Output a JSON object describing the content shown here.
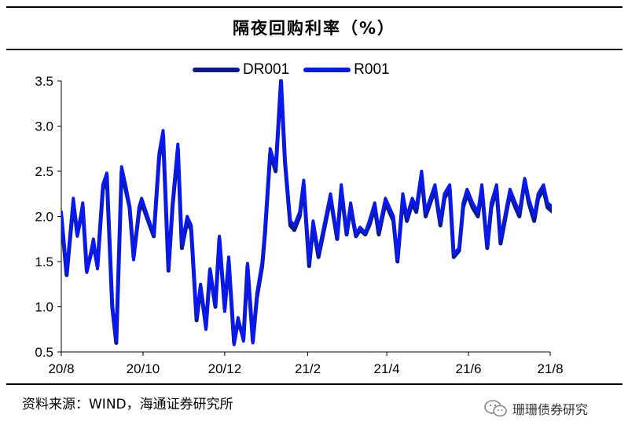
{
  "title": "隔夜回购利率（%）",
  "source": "资料来源：WIND，海通证券研究所",
  "watermark": "珊珊债券研究",
  "colors": {
    "DR001": "#0b1a8a",
    "R001": "#0a18f0"
  },
  "chart_data": {
    "type": "line",
    "title": "隔夜回购利率（%）",
    "xlabel": "",
    "ylabel": "",
    "ylim": [
      0.5,
      3.5
    ],
    "yticks": [
      "0.5",
      "1.0",
      "1.5",
      "2.0",
      "2.5",
      "3.0",
      "3.5"
    ],
    "xticks": [
      "20/8",
      "20/10",
      "20/12",
      "21/2",
      "21/4",
      "21/6",
      "21/8"
    ],
    "legend_position": "top-center",
    "grid": false,
    "x": [
      "2020-08-01",
      "2020-08-05",
      "2020-08-10",
      "2020-08-13",
      "2020-08-17",
      "2020-08-20",
      "2020-08-25",
      "2020-08-28",
      "2020-09-01",
      "2020-09-04",
      "2020-09-08",
      "2020-09-11",
      "2020-09-15",
      "2020-09-18",
      "2020-09-21",
      "2020-09-24",
      "2020-09-28",
      "2020-09-30",
      "2020-10-09",
      "2020-10-13",
      "2020-10-16",
      "2020-10-20",
      "2020-10-23",
      "2020-10-27",
      "2020-10-30",
      "2020-11-03",
      "2020-11-06",
      "2020-11-10",
      "2020-11-13",
      "2020-11-17",
      "2020-11-20",
      "2020-11-24",
      "2020-11-27",
      "2020-12-01",
      "2020-12-04",
      "2020-12-08",
      "2020-12-11",
      "2020-12-15",
      "2020-12-18",
      "2020-12-22",
      "2020-12-25",
      "2020-12-29",
      "2020-12-31",
      "2021-01-04",
      "2021-01-08",
      "2021-01-12",
      "2021-01-15",
      "2021-01-19",
      "2021-01-22",
      "2021-01-26",
      "2021-01-29",
      "2021-02-02",
      "2021-02-05",
      "2021-02-09",
      "2021-02-18",
      "2021-02-23",
      "2021-02-26",
      "2021-03-02",
      "2021-03-05",
      "2021-03-09",
      "2021-03-12",
      "2021-03-16",
      "2021-03-19",
      "2021-03-23",
      "2021-03-26",
      "2021-03-31",
      "2021-04-06",
      "2021-04-09",
      "2021-04-13",
      "2021-04-16",
      "2021-04-20",
      "2021-04-23",
      "2021-04-27",
      "2021-04-30",
      "2021-05-07",
      "2021-05-11",
      "2021-05-14",
      "2021-05-18",
      "2021-05-21",
      "2021-05-25",
      "2021-05-28",
      "2021-05-31",
      "2021-06-04",
      "2021-06-08",
      "2021-06-11",
      "2021-06-15",
      "2021-06-18",
      "2021-06-22",
      "2021-06-25",
      "2021-06-30",
      "2021-07-02",
      "2021-07-06",
      "2021-07-09",
      "2021-07-13",
      "2021-07-16",
      "2021-07-20",
      "2021-07-23",
      "2021-07-27",
      "2021-07-30",
      "2021-08-03"
    ],
    "series": [
      {
        "name": "DR001",
        "values": [
          2.0,
          1.35,
          2.15,
          1.8,
          2.1,
          1.4,
          1.7,
          1.45,
          2.3,
          2.45,
          1.0,
          0.6,
          2.5,
          2.3,
          2.1,
          1.55,
          2.05,
          2.15,
          1.78,
          2.65,
          2.9,
          1.4,
          2.1,
          2.75,
          1.65,
          1.95,
          1.85,
          0.85,
          1.22,
          0.78,
          1.4,
          1.0,
          1.75,
          0.98,
          1.5,
          0.6,
          0.85,
          0.65,
          1.45,
          0.62,
          1.1,
          1.45,
          1.8,
          2.7,
          2.5,
          3.5,
          2.6,
          1.9,
          1.85,
          2.0,
          2.35,
          1.45,
          1.9,
          1.55,
          2.2,
          1.75,
          2.3,
          1.8,
          2.1,
          1.78,
          1.85,
          1.8,
          1.9,
          2.1,
          1.8,
          2.15,
          1.95,
          1.5,
          2.2,
          1.95,
          2.15,
          2.05,
          2.45,
          2.0,
          2.3,
          1.9,
          2.2,
          2.3,
          1.55,
          1.62,
          2.1,
          2.25,
          2.1,
          2.0,
          2.3,
          1.65,
          2.1,
          2.3,
          1.7,
          2.1,
          2.25,
          2.1,
          2.0,
          2.4,
          2.15,
          1.95,
          2.2,
          2.3,
          2.1,
          2.05
        ]
      },
      {
        "name": "R001",
        "values": [
          2.05,
          1.38,
          2.2,
          1.78,
          2.15,
          1.38,
          1.75,
          1.42,
          2.35,
          2.48,
          1.02,
          0.62,
          2.55,
          2.35,
          2.12,
          1.52,
          2.1,
          2.2,
          1.8,
          2.7,
          2.95,
          1.42,
          2.15,
          2.8,
          1.7,
          2.0,
          1.9,
          0.88,
          1.25,
          0.75,
          1.42,
          1.02,
          1.78,
          0.95,
          1.55,
          0.58,
          0.88,
          0.62,
          1.48,
          0.6,
          1.15,
          1.5,
          1.85,
          2.75,
          2.55,
          3.52,
          2.65,
          1.95,
          1.9,
          2.05,
          2.4,
          1.5,
          1.95,
          1.6,
          2.25,
          1.78,
          2.35,
          1.82,
          2.15,
          1.8,
          1.88,
          1.82,
          1.95,
          2.15,
          1.85,
          2.2,
          2.0,
          1.52,
          2.25,
          2.0,
          2.2,
          2.1,
          2.5,
          2.05,
          2.35,
          1.95,
          2.25,
          2.35,
          1.58,
          1.65,
          2.15,
          2.3,
          2.15,
          2.05,
          2.35,
          1.68,
          2.15,
          2.35,
          1.75,
          2.15,
          2.3,
          2.15,
          2.05,
          2.42,
          2.2,
          2.0,
          2.25,
          2.35,
          2.15,
          2.1
        ]
      }
    ]
  }
}
